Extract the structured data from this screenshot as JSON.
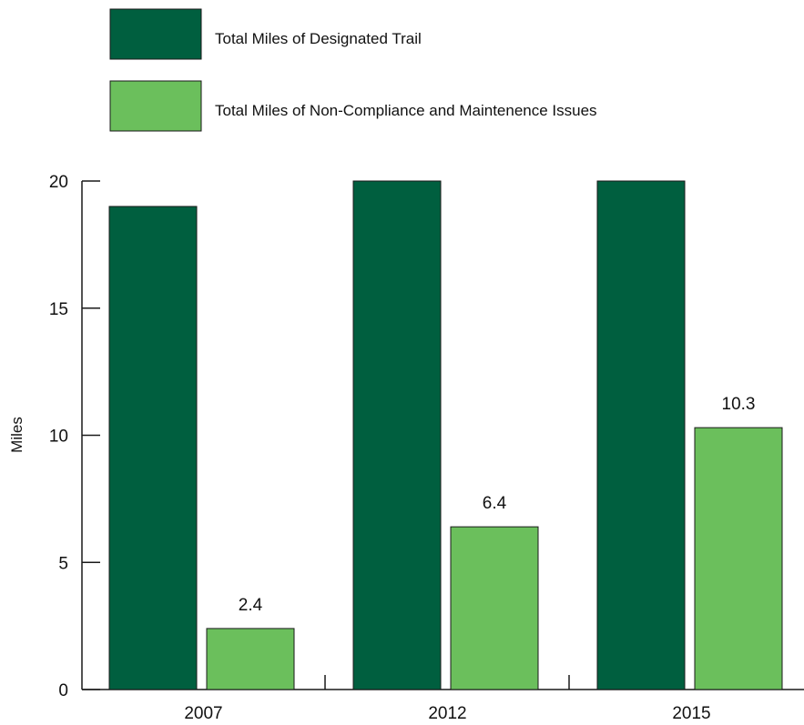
{
  "chart_data": {
    "type": "bar",
    "categories": [
      "2007",
      "2012",
      "2015"
    ],
    "series": [
      {
        "name": "Total Miles of Designated Trail",
        "color": "#005f3f",
        "values": [
          19,
          20,
          20
        ],
        "show_labels": false
      },
      {
        "name": "Total Miles of Non-Compliance and Maintenence Issues",
        "color": "#6bbf5c",
        "values": [
          2.4,
          6.4,
          10.3
        ],
        "show_labels": true
      }
    ],
    "ylabel": "Miles",
    "ylim": [
      0,
      20
    ],
    "yticks": [
      0,
      5,
      10,
      15,
      20
    ],
    "grid": false,
    "legend_position": "top-left"
  }
}
